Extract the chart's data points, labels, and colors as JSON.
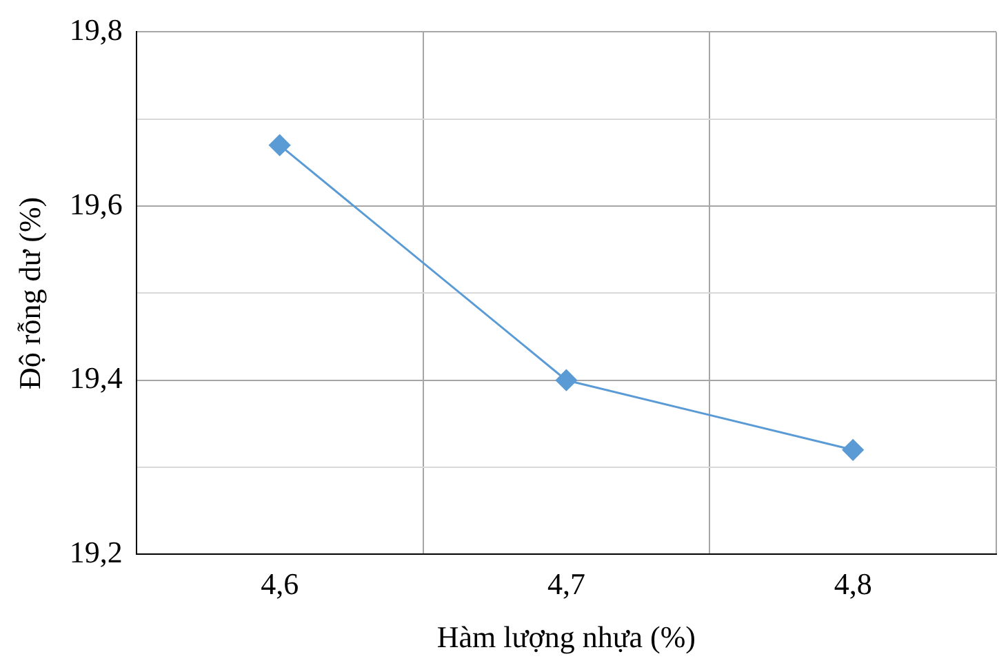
{
  "chart_data": {
    "type": "line",
    "xlabel": "Hàm lượng nhựa (%)",
    "ylabel": "Độ rỗng dư (%)",
    "categories": [
      "4,6",
      "4,7",
      "4,8"
    ],
    "series": [
      {
        "color": "#5b9bd5",
        "values": [
          19.67,
          19.4,
          19.32
        ]
      }
    ],
    "ylim": [
      19.2,
      19.8
    ],
    "yticks": [
      {
        "value": 19.2,
        "label": "19,2"
      },
      {
        "value": 19.3,
        "label": null
      },
      {
        "value": 19.4,
        "label": "19,4"
      },
      {
        "value": 19.5,
        "label": null
      },
      {
        "value": 19.6,
        "label": "19,6"
      },
      {
        "value": 19.7,
        "label": null
      },
      {
        "value": 19.8,
        "label": "19,8"
      }
    ],
    "grid": true,
    "marker": "diamond",
    "line_style": "solid",
    "legend": false
  }
}
